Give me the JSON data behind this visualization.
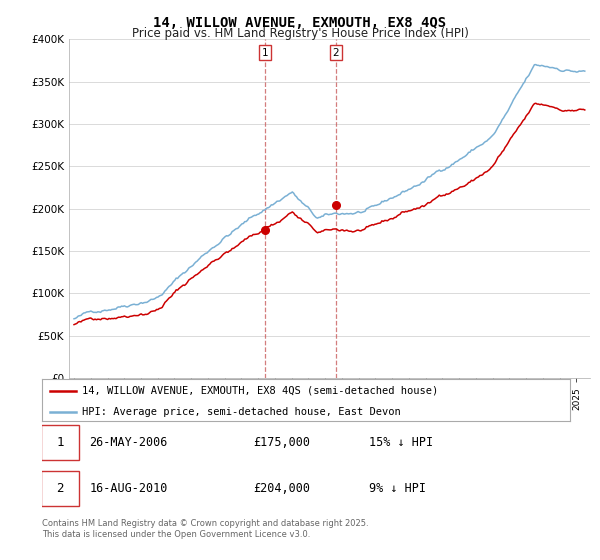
{
  "title": "14, WILLOW AVENUE, EXMOUTH, EX8 4QS",
  "subtitle": "Price paid vs. HM Land Registry's House Price Index (HPI)",
  "legend_line1": "14, WILLOW AVENUE, EXMOUTH, EX8 4QS (semi-detached house)",
  "legend_line2": "HPI: Average price, semi-detached house, East Devon",
  "footer": "Contains HM Land Registry data © Crown copyright and database right 2025.\nThis data is licensed under the Open Government Licence v3.0.",
  "transactions": [
    {
      "num": 1,
      "date": "26-MAY-2006",
      "price": "£175,000",
      "hpi": "15% ↓ HPI"
    },
    {
      "num": 2,
      "date": "16-AUG-2010",
      "price": "£204,000",
      "hpi": "9% ↓ HPI"
    }
  ],
  "transaction_dates_float": [
    2006.4,
    2010.62
  ],
  "transaction_prices": [
    175000,
    204000
  ],
  "ylim": [
    0,
    400000
  ],
  "xlim_start": 1994.7,
  "xlim_end": 2025.8,
  "red_color": "#cc0000",
  "blue_color": "#7ab0d4",
  "grid_color": "#cccccc",
  "bg_color": "#ffffff",
  "marker_box_color": "#cc3333"
}
